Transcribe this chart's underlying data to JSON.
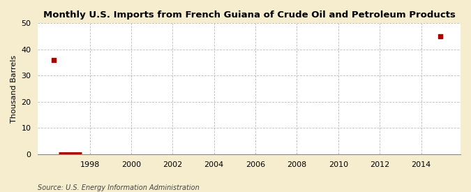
{
  "title": "Monthly U.S. Imports from French Guiana of Crude Oil and Petroleum Products",
  "ylabel": "Thousand Barrels",
  "source": "Source: U.S. Energy Information Administration",
  "figure_bg_color": "#f5edce",
  "plot_bg_color": "#ffffff",
  "xlim": [
    1995.5,
    2015.9
  ],
  "ylim": [
    0,
    50
  ],
  "yticks": [
    0,
    10,
    20,
    30,
    40,
    50
  ],
  "xticks": [
    1998,
    2000,
    2002,
    2004,
    2006,
    2008,
    2010,
    2012,
    2014
  ],
  "scatter_x": [
    1996.25,
    2014.92
  ],
  "scatter_y": [
    36,
    45
  ],
  "bar_x_start": 1996.5,
  "bar_x_end": 1997.6,
  "bar_y": 0.3,
  "marker_color": "#aa0000",
  "bar_color": "#aa0000",
  "grid_color": "#bbbbbb",
  "title_fontsize": 9.5,
  "label_fontsize": 8,
  "tick_fontsize": 8,
  "source_fontsize": 7
}
